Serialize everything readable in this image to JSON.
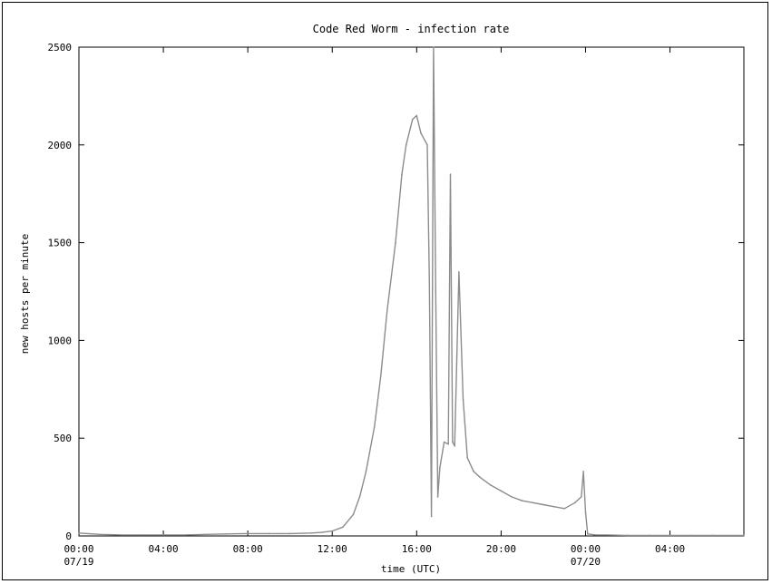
{
  "chart_data": {
    "type": "line",
    "title": "Code Red Worm - infection rate",
    "xlabel": "time (UTC)",
    "ylabel": "new hosts per minute",
    "ylim": [
      0,
      2500
    ],
    "xlim_hours": [
      0,
      31.5
    ],
    "grid": false,
    "y_ticks": [
      "0",
      "500",
      "1000",
      "1500",
      "2000",
      "2500"
    ],
    "x_ticks": [
      {
        "label": "00:00",
        "sub": "07/19",
        "hour": 0
      },
      {
        "label": "04:00",
        "sub": "",
        "hour": 4
      },
      {
        "label": "08:00",
        "sub": "",
        "hour": 8
      },
      {
        "label": "12:00",
        "sub": "",
        "hour": 12
      },
      {
        "label": "16:00",
        "sub": "",
        "hour": 16
      },
      {
        "label": "20:00",
        "sub": "",
        "hour": 20
      },
      {
        "label": "00:00",
        "sub": "07/20",
        "hour": 24
      },
      {
        "label": "04:00",
        "sub": "",
        "hour": 28
      }
    ],
    "series": [
      {
        "color": "#8c8c8c",
        "x_hours": [
          0,
          1,
          2,
          3,
          4,
          5,
          6,
          7,
          8,
          9,
          10,
          11,
          11.5,
          12,
          12.5,
          13,
          13.3,
          13.6,
          14,
          14.3,
          14.6,
          15,
          15.3,
          15.5,
          15.8,
          16,
          16.2,
          16.5,
          16.6,
          16.7,
          16.8,
          16.9,
          17,
          17.1,
          17.3,
          17.5,
          17.6,
          17.7,
          17.8,
          18,
          18.2,
          18.4,
          18.7,
          19,
          19.5,
          20,
          20.5,
          21,
          21.5,
          22,
          22.5,
          23,
          23.5,
          23.8,
          23.9,
          24,
          24.1,
          24.5,
          25,
          26,
          27,
          28,
          29,
          30,
          31.5
        ],
        "y_values": [
          15,
          8,
          5,
          5,
          5,
          5,
          8,
          10,
          12,
          12,
          12,
          15,
          18,
          25,
          45,
          110,
          200,
          330,
          560,
          820,
          1150,
          1500,
          1850,
          2000,
          2130,
          2150,
          2060,
          2000,
          1300,
          100,
          2500,
          1250,
          200,
          350,
          480,
          470,
          1850,
          480,
          460,
          1350,
          700,
          400,
          330,
          300,
          260,
          230,
          200,
          180,
          170,
          160,
          150,
          140,
          170,
          200,
          330,
          120,
          10,
          5,
          5,
          3,
          3,
          3,
          3,
          3,
          3
        ]
      }
    ]
  }
}
